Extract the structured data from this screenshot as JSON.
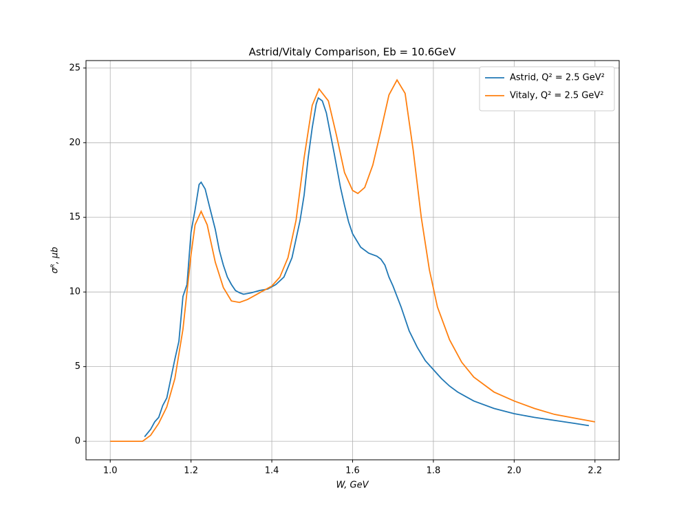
{
  "chart_data": {
    "type": "line",
    "title": "Astrid/Vitaly Comparison, Eb = 10.6GeV",
    "xlabel": "W, GeV",
    "ylabel": "σᴿ, μb",
    "xlim": [
      0.94,
      2.26
    ],
    "ylim": [
      -1.24,
      25.5
    ],
    "xticks": [
      {
        "value": 1,
        "label": "1.0"
      },
      1.2,
      1.4,
      1.6,
      1.8,
      {
        "value": 2,
        "label": "2.0"
      },
      2.2
    ],
    "yticks": [
      0,
      5,
      10,
      15,
      20,
      25
    ],
    "grid": true,
    "legend": "upper right",
    "series": [
      {
        "name": "Astrid, Q² = 2.5 GeV²",
        "color": "#1f77b4",
        "x": [
          1.085,
          1.1,
          1.11,
          1.12,
          1.13,
          1.14,
          1.15,
          1.16,
          1.17,
          1.18,
          1.19,
          1.2,
          1.21,
          1.22,
          1.225,
          1.235,
          1.245,
          1.26,
          1.27,
          1.28,
          1.29,
          1.3,
          1.31,
          1.32,
          1.33,
          1.35,
          1.37,
          1.39,
          1.41,
          1.43,
          1.45,
          1.47,
          1.48,
          1.49,
          1.5,
          1.51,
          1.515,
          1.525,
          1.535,
          1.545,
          1.555,
          1.57,
          1.58,
          1.59,
          1.6,
          1.62,
          1.64,
          1.66,
          1.67,
          1.68,
          1.69,
          1.7,
          1.72,
          1.74,
          1.76,
          1.78,
          1.8,
          1.82,
          1.84,
          1.86,
          1.88,
          1.9,
          1.95,
          2.0,
          2.05,
          2.1,
          2.15,
          2.185
        ],
        "values": [
          0.3,
          0.8,
          1.3,
          1.6,
          2.4,
          2.9,
          4.2,
          5.5,
          6.7,
          9.7,
          10.5,
          14.0,
          15.5,
          17.2,
          17.35,
          16.9,
          15.8,
          14.2,
          12.8,
          11.8,
          11.0,
          10.5,
          10.1,
          9.95,
          9.85,
          9.95,
          10.1,
          10.2,
          10.5,
          11.0,
          12.3,
          14.8,
          16.5,
          19.0,
          21.0,
          22.6,
          23.0,
          22.8,
          22.0,
          20.6,
          19.2,
          17.0,
          15.8,
          14.7,
          13.9,
          13.0,
          12.6,
          12.4,
          12.2,
          11.8,
          11.0,
          10.4,
          9.0,
          7.4,
          6.3,
          5.4,
          4.8,
          4.2,
          3.7,
          3.3,
          3.0,
          2.7,
          2.2,
          1.85,
          1.6,
          1.4,
          1.2,
          1.05
        ]
      },
      {
        "name": "Vitaly, Q² = 2.5 GeV²",
        "color": "#ff7f0e",
        "x": [
          1.0,
          1.08,
          1.1,
          1.12,
          1.14,
          1.16,
          1.18,
          1.2,
          1.21,
          1.225,
          1.24,
          1.26,
          1.28,
          1.3,
          1.32,
          1.34,
          1.36,
          1.38,
          1.4,
          1.42,
          1.44,
          1.46,
          1.48,
          1.5,
          1.517,
          1.54,
          1.56,
          1.58,
          1.6,
          1.613,
          1.63,
          1.65,
          1.67,
          1.69,
          1.71,
          1.73,
          1.75,
          1.77,
          1.79,
          1.81,
          1.84,
          1.87,
          1.9,
          1.95,
          2.0,
          2.05,
          2.1,
          2.15,
          2.2
        ],
        "values": [
          0,
          0,
          0.4,
          1.2,
          2.3,
          4.2,
          7.5,
          12.5,
          14.5,
          15.4,
          14.5,
          12.0,
          10.3,
          9.4,
          9.3,
          9.5,
          9.8,
          10.1,
          10.4,
          11.0,
          12.3,
          14.8,
          19.0,
          22.5,
          23.6,
          22.8,
          20.5,
          18.0,
          16.8,
          16.6,
          17.0,
          18.5,
          20.8,
          23.2,
          24.2,
          23.3,
          19.5,
          15.0,
          11.5,
          9.0,
          6.8,
          5.3,
          4.3,
          3.3,
          2.7,
          2.2,
          1.8,
          1.55,
          1.3
        ]
      }
    ]
  }
}
